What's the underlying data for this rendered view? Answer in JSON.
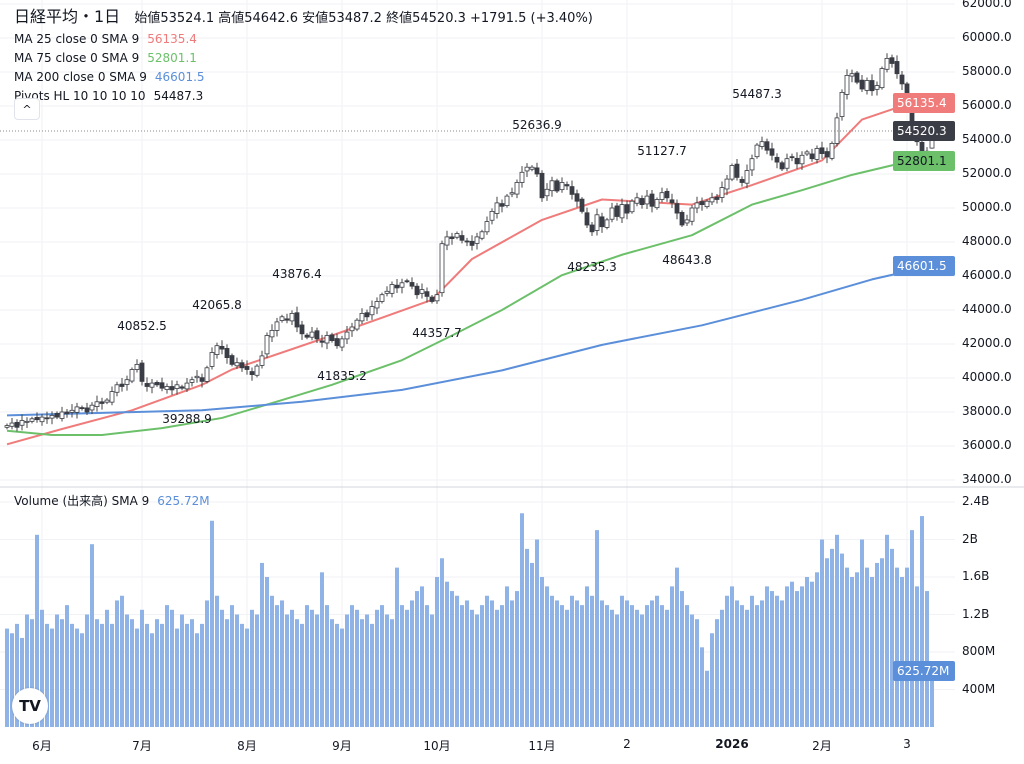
{
  "header": {
    "symbol": "日経平均・1日",
    "open_label": "始値",
    "open": "53524.1",
    "high_label": "高値",
    "high": "54642.6",
    "low_label": "安値",
    "low": "53487.2",
    "close_label": "終値",
    "close": "54520.3",
    "change": "+1791.5 (+3.40%)"
  },
  "indicators": [
    {
      "label": "MA 25 close 0 SMA 9",
      "value": "56135.4",
      "color": "#ef7b7b"
    },
    {
      "label": "MA 75 close 0 SMA 9",
      "value": "52801.1",
      "color": "#6cc06a"
    },
    {
      "label": "MA 200 close 0 SMA 9",
      "value": "46601.5",
      "color": "#5b8fd9"
    },
    {
      "label": "Pivots HL 10 10 10 10",
      "value": "54487.3",
      "color": "#131722"
    }
  ],
  "collapse_icon": "chevron-up-icon",
  "collapse_glyph": "^",
  "volume_legend": {
    "label": "Volume (出来高)  SMA 9",
    "value": "625.72M"
  },
  "price_tags": {
    "ma25": "56135.4",
    "last": "54520.3",
    "ma75": "52801.1",
    "ma200": "46601.5",
    "volume": "625.72M"
  },
  "logo_text": "TV",
  "chart_data": {
    "type": "candlestick",
    "price_axis": {
      "range": [
        34000,
        62000
      ],
      "ticks": [
        "62000.0",
        "60000.0",
        "58000.0",
        "56000.0",
        "54000.0",
        "52000.0",
        "50000.0",
        "48000.0",
        "46000.0",
        "44000.0",
        "42000.0",
        "40000.0",
        "38000.0",
        "36000.0",
        "34000.0"
      ]
    },
    "volume_axis": {
      "range": [
        0,
        2400
      ],
      "unit": "M",
      "ticks": [
        "2.4B",
        "2B",
        "1.6B",
        "1.2B",
        "800M",
        "400M"
      ]
    },
    "time_ticks": [
      {
        "bar": 7,
        "label": "6月"
      },
      {
        "bar": 27,
        "label": "7月"
      },
      {
        "bar": 48,
        "label": "8月"
      },
      {
        "bar": 67,
        "label": "9月"
      },
      {
        "bar": 86,
        "label": "10月"
      },
      {
        "bar": 107,
        "label": "11月"
      },
      {
        "bar": 124,
        "label": "2"
      },
      {
        "bar": 145,
        "label": "2026"
      },
      {
        "bar": 163,
        "label": "2月"
      },
      {
        "bar": 180,
        "label": "3"
      }
    ],
    "last_bar": {
      "open": 53524.1,
      "high": 54642.6,
      "low": 53487.2,
      "close": 54520.3
    },
    "closes": [
      37200,
      37350,
      37100,
      37500,
      37450,
      37600,
      37550,
      37700,
      37600,
      37800,
      37700,
      38000,
      37900,
      38100,
      38300,
      38200,
      38000,
      38400,
      38600,
      38500,
      38700,
      39200,
      39600,
      39500,
      39900,
      40500,
      40800,
      39800,
      39500,
      39700,
      39600,
      39400,
      39500,
      39300,
      39600,
      39400,
      39700,
      39900,
      40100,
      39800,
      40600,
      41500,
      41900,
      41700,
      41200,
      40800,
      40900,
      40600,
      40500,
      40200,
      40700,
      41300,
      42500,
      42800,
      43300,
      43600,
      43400,
      43800,
      43000,
      42600,
      42400,
      42700,
      42300,
      42100,
      42500,
      42200,
      41900,
      42300,
      42700,
      43000,
      43400,
      43800,
      43600,
      44200,
      44500,
      44900,
      45100,
      45500,
      45300,
      45600,
      45700,
      45400,
      44900,
      45200,
      44800,
      44500,
      44900,
      47900,
      48300,
      48200,
      48500,
      48100,
      48000,
      47800,
      48300,
      48600,
      49200,
      49800,
      50300,
      50100,
      50700,
      50900,
      51500,
      52100,
      52400,
      52400,
      52000,
      50600,
      51100,
      51600,
      51000,
      51500,
      51300,
      50800,
      50400,
      49800,
      49000,
      48600,
      49600,
      48900,
      49300,
      50000,
      49500,
      50200,
      49700,
      50400,
      50600,
      50200,
      50700,
      50100,
      50500,
      50900,
      50600,
      50300,
      49700,
      49000,
      49300,
      50000,
      50300,
      50200,
      50400,
      50600,
      50500,
      51200,
      51700,
      52500,
      51800,
      51500,
      52200,
      52900,
      53700,
      53900,
      53400,
      53100,
      52700,
      52300,
      52900,
      53000,
      52600,
      53100,
      53300,
      52900,
      53500,
      53200,
      53000,
      53800,
      55300,
      56800,
      57800,
      57900,
      57400,
      57000,
      57500,
      56900,
      57200,
      58200,
      58800,
      58500,
      57900,
      57300,
      56300,
      54700,
      53900,
      53300,
      52728.8,
      54520.3
    ],
    "volumes_m": [
      1050,
      1000,
      1100,
      950,
      1200,
      1150,
      2050,
      1250,
      1100,
      1050,
      1200,
      1150,
      1300,
      1100,
      1050,
      1000,
      1200,
      1950,
      1150,
      1100,
      1250,
      1100,
      1350,
      1400,
      1200,
      1150,
      1050,
      1250,
      1100,
      1000,
      1150,
      1100,
      1300,
      1250,
      1050,
      1200,
      1100,
      1150,
      1000,
      1100,
      1350,
      2200,
      1400,
      1250,
      1150,
      1300,
      1200,
      1100,
      1050,
      1250,
      1200,
      1750,
      1600,
      1400,
      1300,
      1350,
      1200,
      1250,
      1150,
      1100,
      1300,
      1250,
      1200,
      1650,
      1300,
      1150,
      1100,
      1050,
      1200,
      1300,
      1250,
      1150,
      1200,
      1100,
      1250,
      1300,
      1200,
      1150,
      1700,
      1300,
      1250,
      1350,
      1450,
      1500,
      1300,
      1200,
      1600,
      1800,
      1550,
      1450,
      1400,
      1300,
      1350,
      1250,
      1200,
      1300,
      1400,
      1350,
      1250,
      1300,
      1500,
      1350,
      1450,
      2280,
      1900,
      1750,
      2000,
      1600,
      1500,
      1400,
      1350,
      1300,
      1250,
      1400,
      1350,
      1300,
      1500,
      1400,
      2100,
      1350,
      1300,
      1250,
      1200,
      1400,
      1350,
      1300,
      1250,
      1200,
      1300,
      1350,
      1400,
      1300,
      1250,
      1500,
      1700,
      1450,
      1300,
      1200,
      1150,
      850,
      600,
      1000,
      1150,
      1250,
      1400,
      1500,
      1350,
      1300,
      1250,
      1400,
      1300,
      1350,
      1500,
      1450,
      1400,
      1350,
      1500,
      1550,
      1450,
      1500,
      1600,
      1550,
      1650,
      2000,
      1800,
      1900,
      2050,
      1850,
      1700,
      1600,
      1650,
      2000,
      1700,
      1600,
      1750,
      1800,
      2050,
      1900,
      1700,
      1600,
      1700,
      2100,
      1500,
      2250,
      1450,
      625.72
    ],
    "ma_series": [
      {
        "name": "MA 25",
        "color": "#ef7b7b",
        "points": [
          [
            0,
            36100
          ],
          [
            11,
            37000
          ],
          [
            25,
            38100
          ],
          [
            39,
            39600
          ],
          [
            45,
            40500
          ],
          [
            65,
            42500
          ],
          [
            85,
            44600
          ],
          [
            93,
            47000
          ],
          [
            107,
            49300
          ],
          [
            119,
            50500
          ],
          [
            137,
            50200
          ],
          [
            149,
            51350
          ],
          [
            163,
            52800
          ],
          [
            171,
            55200
          ],
          [
            179,
            56000
          ],
          [
            185,
            56135.4
          ]
        ]
      },
      {
        "name": "MA 75",
        "color": "#6cc06a",
        "points": [
          [
            0,
            36900
          ],
          [
            9,
            36650
          ],
          [
            19,
            36650
          ],
          [
            31,
            37050
          ],
          [
            43,
            37650
          ],
          [
            55,
            38700
          ],
          [
            65,
            39600
          ],
          [
            79,
            41050
          ],
          [
            89,
            42500
          ],
          [
            99,
            44000
          ],
          [
            111,
            46050
          ],
          [
            123,
            47250
          ],
          [
            137,
            48400
          ],
          [
            149,
            50200
          ],
          [
            159,
            51050
          ],
          [
            169,
            51950
          ],
          [
            179,
            52650
          ],
          [
            185,
            52801.1
          ]
        ]
      },
      {
        "name": "MA 200",
        "color": "#5b8fd9",
        "points": [
          [
            0,
            37800
          ],
          [
            19,
            37950
          ],
          [
            39,
            38100
          ],
          [
            59,
            38600
          ],
          [
            79,
            39300
          ],
          [
            99,
            40450
          ],
          [
            119,
            41950
          ],
          [
            139,
            43100
          ],
          [
            159,
            44600
          ],
          [
            173,
            45800
          ],
          [
            185,
            46601.5
          ]
        ]
      }
    ],
    "pivots": [
      {
        "bar": 27,
        "value": "40852.5",
        "type": "high"
      },
      {
        "bar": 42,
        "value": "42065.8",
        "type": "high"
      },
      {
        "bar": 58,
        "value": "43876.4",
        "type": "high"
      },
      {
        "bar": 106,
        "value": "52636.9",
        "type": "high"
      },
      {
        "bar": 131,
        "value": "51127.7",
        "type": "high"
      },
      {
        "bar": 150,
        "value": "54487.3",
        "type": "high"
      },
      {
        "bar": 36,
        "value": "39288.9",
        "type": "low"
      },
      {
        "bar": 67,
        "value": "41835.2",
        "type": "low"
      },
      {
        "bar": 86,
        "value": "44357.7",
        "type": "low"
      },
      {
        "bar": 117,
        "value": "48235.3",
        "type": "low"
      },
      {
        "bar": 136,
        "value": "48643.8",
        "type": "low"
      }
    ]
  }
}
